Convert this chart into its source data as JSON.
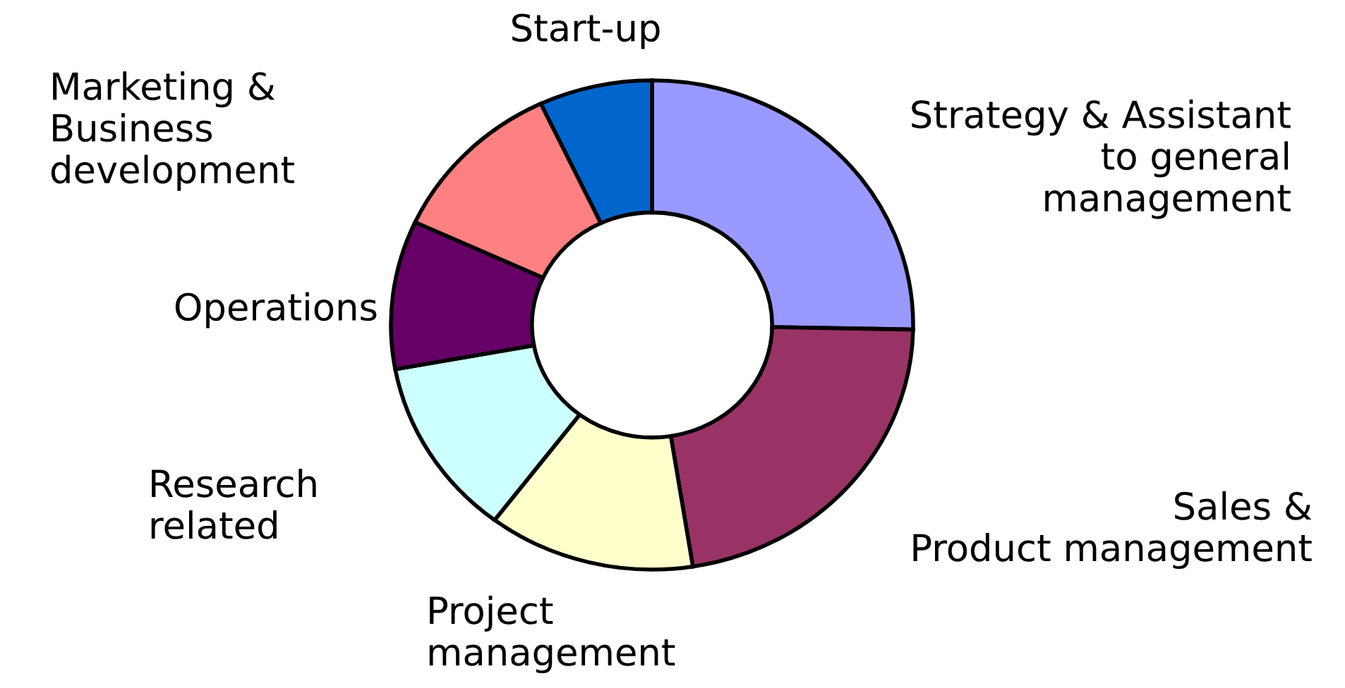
{
  "chart_data": {
    "type": "donut",
    "categories": [
      "Strategy & Assistant\nto general\nmanagement",
      "Sales &\nProduct management",
      "Project\nmanagement",
      "Research\nrelated",
      "Operations",
      "Marketing &\nBusiness\ndevelopment",
      "Start-up"
    ],
    "values": [
      25.3,
      22.2,
      12.8,
      11.8,
      9.8,
      11.1,
      7.0
    ],
    "colors": [
      "#9999ff",
      "#993366",
      "#ffffcc",
      "#ccffff",
      "#660066",
      "#ff8080",
      "#0066cc"
    ],
    "legend": false
  }
}
